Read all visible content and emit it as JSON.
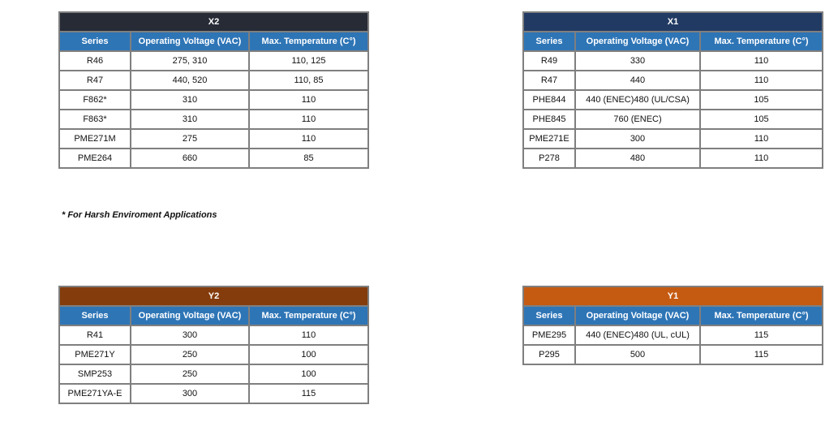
{
  "headers": {
    "series": "Series",
    "voltage": "Operating Voltage (VAC)",
    "temp": "Max. Temperature (C°)"
  },
  "colors": {
    "x2": "#262b36",
    "x1": "#213a63",
    "y2": "#843c0c",
    "y1": "#c55a11",
    "header": "#2e75b6"
  },
  "tables": [
    {
      "id": "x2",
      "title": "X2",
      "rows": [
        [
          "R46",
          "275, 310",
          "110, 125"
        ],
        [
          "R47",
          "440, 520",
          "110, 85"
        ],
        [
          "F862*",
          "310",
          "110"
        ],
        [
          "F863*",
          "310",
          "110"
        ],
        [
          "PME271M",
          "275",
          "110"
        ],
        [
          "PME264",
          "660",
          "85"
        ]
      ]
    },
    {
      "id": "x1",
      "title": "X1",
      "rows": [
        [
          "R49",
          "330",
          "110"
        ],
        [
          "R47",
          "440",
          "110"
        ],
        [
          "PHE844",
          "440 (ENEC)480 (UL/CSA)",
          "105"
        ],
        [
          "PHE845",
          "760 (ENEC)",
          "105"
        ],
        [
          "PME271E",
          "300",
          "110"
        ],
        [
          "P278",
          "480",
          "110"
        ]
      ]
    },
    {
      "id": "y2",
      "title": "Y2",
      "rows": [
        [
          "R41",
          "300",
          "110"
        ],
        [
          "PME271Y",
          "250",
          "100"
        ],
        [
          "SMP253",
          "250",
          "100"
        ],
        [
          "PME271YA-E",
          "300",
          "115"
        ]
      ]
    },
    {
      "id": "y1",
      "title": "Y1",
      "rows": [
        [
          "PME295",
          "440 (ENEC)480 (UL, cUL)",
          "115"
        ],
        [
          "P295",
          "500",
          "115"
        ]
      ]
    }
  ],
  "note": "* For Harsh Enviroment Applications"
}
